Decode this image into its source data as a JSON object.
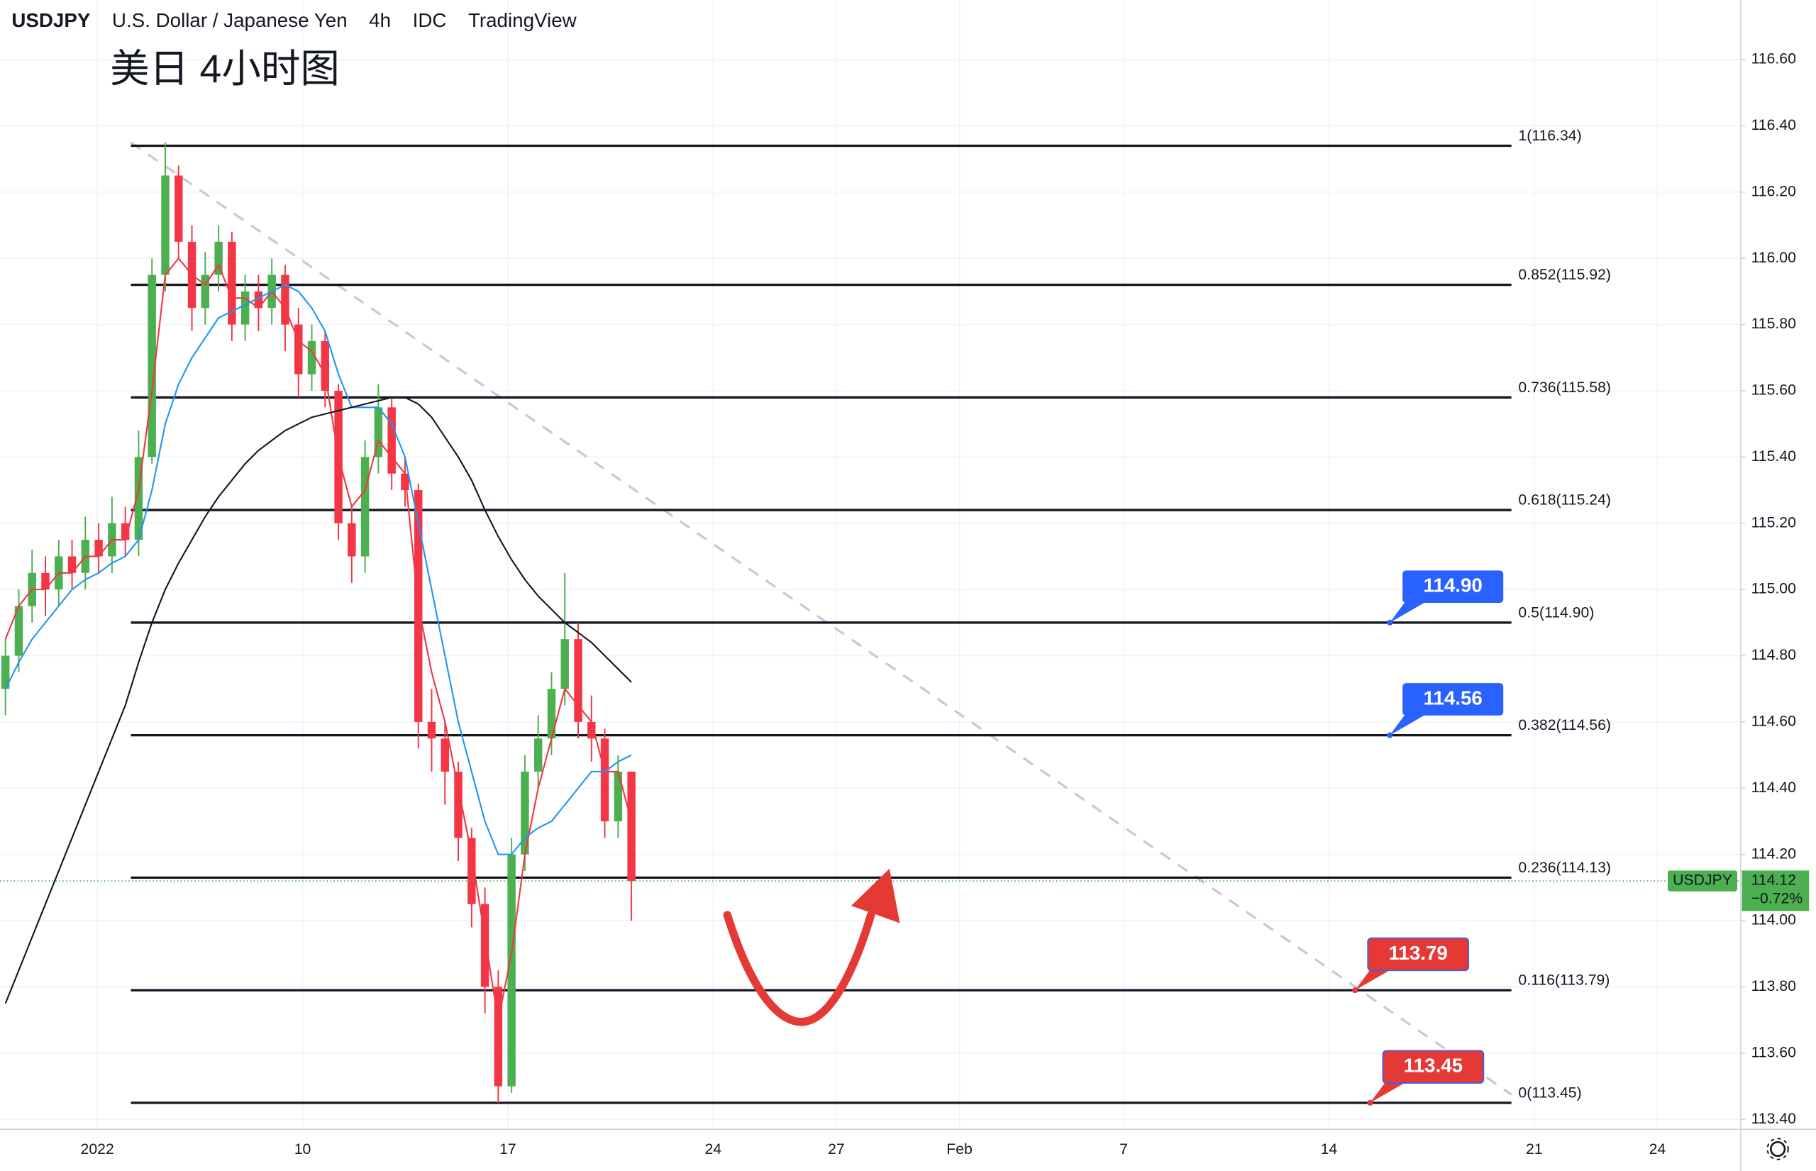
{
  "header": {
    "symbol": "USDJPY",
    "name": "U.S. Dollar / Japanese Yen",
    "interval": "4h",
    "source": "IDC",
    "platform": "TradingView"
  },
  "chart_data": {
    "type": "candlestick",
    "annotation": "美日 4小时图",
    "up_color": "#4caf50",
    "down_color": "#f23645",
    "open": [
      114.7,
      114.8,
      114.95,
      115.05,
      115.0,
      115.1,
      115.05,
      115.15,
      115.1,
      115.2,
      115.15,
      115.4,
      115.95,
      116.25,
      116.05,
      115.85,
      115.95,
      116.05,
      115.8,
      115.9,
      115.85,
      115.95,
      115.8,
      115.65,
      115.75,
      115.6,
      115.2,
      115.1,
      115.4,
      115.55,
      115.35,
      115.3,
      114.6,
      114.55,
      114.45,
      114.25,
      114.05,
      113.8,
      113.5,
      114.2,
      114.45,
      114.55,
      114.7,
      114.85,
      114.6,
      114.55,
      114.3,
      114.45
    ],
    "high": [
      114.85,
      115.0,
      115.12,
      115.1,
      115.15,
      115.15,
      115.22,
      115.2,
      115.28,
      115.25,
      115.48,
      116.0,
      116.35,
      116.28,
      116.1,
      116.02,
      116.1,
      116.08,
      115.95,
      115.95,
      116.0,
      115.98,
      115.85,
      115.8,
      115.78,
      115.62,
      115.25,
      115.45,
      115.62,
      115.58,
      115.4,
      115.32,
      114.7,
      114.6,
      114.48,
      114.28,
      114.1,
      113.85,
      114.25,
      114.5,
      114.62,
      114.75,
      115.05,
      114.9,
      114.68,
      114.58,
      114.5,
      114.45
    ],
    "low": [
      114.62,
      114.75,
      114.9,
      114.92,
      114.95,
      115.0,
      115.0,
      115.05,
      115.05,
      115.1,
      115.1,
      115.38,
      115.9,
      116.0,
      115.78,
      115.8,
      115.9,
      115.75,
      115.75,
      115.78,
      115.8,
      115.72,
      115.58,
      115.6,
      115.55,
      115.15,
      115.02,
      115.05,
      115.35,
      115.3,
      115.25,
      114.52,
      114.45,
      114.35,
      114.18,
      113.98,
      113.72,
      113.45,
      113.48,
      114.15,
      114.4,
      114.5,
      114.65,
      114.55,
      114.48,
      114.25,
      114.25,
      114.0
    ],
    "close": [
      114.8,
      114.95,
      115.05,
      115.0,
      115.1,
      115.05,
      115.15,
      115.1,
      115.2,
      115.15,
      115.4,
      115.95,
      116.25,
      116.05,
      115.85,
      115.95,
      116.05,
      115.8,
      115.9,
      115.85,
      115.95,
      115.8,
      115.65,
      115.75,
      115.6,
      115.2,
      115.1,
      115.4,
      115.55,
      115.35,
      115.3,
      114.6,
      114.55,
      114.45,
      114.25,
      114.05,
      113.8,
      113.5,
      114.2,
      114.45,
      114.55,
      114.7,
      114.85,
      114.6,
      114.55,
      114.3,
      114.45,
      114.12
    ],
    "series": [
      {
        "color": "#f23645",
        "values": [
          114.85,
          114.95,
          115.0,
          115.0,
          115.05,
          115.05,
          115.1,
          115.1,
          115.15,
          115.15,
          115.3,
          115.6,
          115.95,
          116.0,
          115.95,
          115.92,
          115.98,
          115.88,
          115.88,
          115.85,
          115.9,
          115.85,
          115.75,
          115.72,
          115.65,
          115.4,
          115.25,
          115.3,
          115.45,
          115.4,
          115.35,
          114.95,
          114.75,
          114.6,
          114.4,
          114.2,
          113.95,
          113.7,
          113.9,
          114.2,
          114.4,
          114.55,
          114.7,
          114.65,
          114.6,
          114.45,
          114.45,
          114.3
        ]
      },
      {
        "color": "#2196f3",
        "values": [
          114.7,
          114.78,
          114.85,
          114.9,
          114.95,
          115.0,
          115.03,
          115.05,
          115.08,
          115.1,
          115.15,
          115.3,
          115.5,
          115.62,
          115.7,
          115.76,
          115.82,
          115.84,
          115.86,
          115.88,
          115.9,
          115.92,
          115.9,
          115.85,
          115.78,
          115.65,
          115.55,
          115.55,
          115.55,
          115.5,
          115.4,
          115.2,
          115.0,
          114.8,
          114.6,
          114.45,
          114.3,
          114.2,
          114.2,
          114.25,
          114.28,
          114.3,
          114.35,
          114.4,
          114.45,
          114.45,
          114.48,
          114.5
        ]
      },
      {
        "color": "#131722",
        "values": [
          113.75,
          113.85,
          113.95,
          114.05,
          114.15,
          114.25,
          114.35,
          114.45,
          114.55,
          114.65,
          114.78,
          114.9,
          115.0,
          115.08,
          115.15,
          115.22,
          115.28,
          115.33,
          115.38,
          115.42,
          115.45,
          115.48,
          115.5,
          115.52,
          115.53,
          115.54,
          115.55,
          115.56,
          115.57,
          115.58,
          115.58,
          115.56,
          115.52,
          115.46,
          115.4,
          115.33,
          115.24,
          115.16,
          115.09,
          115.03,
          114.98,
          114.94,
          114.9,
          114.87,
          114.84,
          114.8,
          114.76,
          114.72
        ]
      }
    ],
    "ylim": [
      113.37,
      116.78
    ],
    "yticks": [
      {
        "value": 116.6,
        "label": "116.60"
      },
      {
        "value": 116.4,
        "label": "116.40"
      },
      {
        "value": 116.2,
        "label": "116.20"
      },
      {
        "value": 116,
        "label": "116.00"
      },
      {
        "value": 115.8,
        "label": "115.80"
      },
      {
        "value": 115.6,
        "label": "115.60"
      },
      {
        "value": 115.4,
        "label": "115.40"
      },
      {
        "value": 115.2,
        "label": "115.20"
      },
      {
        "value": 115,
        "label": "115.00"
      },
      {
        "value": 114.8,
        "label": "114.80"
      },
      {
        "value": 114.6,
        "label": "114.60"
      },
      {
        "value": 114.4,
        "label": "114.40"
      },
      {
        "value": 114.2,
        "label": "114.20"
      },
      {
        "value": 114,
        "label": "114.00"
      },
      {
        "value": 113.8,
        "label": "113.80"
      },
      {
        "value": 113.6,
        "label": "113.60"
      },
      {
        "value": 113.4,
        "label": "113.40"
      }
    ],
    "xlim": [
      -2.37,
      40.03
    ],
    "xticks": [
      {
        "value": 0,
        "label": "2022"
      },
      {
        "value": 5,
        "label": "10"
      },
      {
        "value": 10,
        "label": "17"
      },
      {
        "value": 15,
        "label": "24"
      },
      {
        "value": 18,
        "label": "27"
      },
      {
        "value": 21,
        "label": "Feb"
      },
      {
        "value": 25,
        "label": "7"
      },
      {
        "value": 30,
        "label": "14"
      },
      {
        "value": 35,
        "label": "21"
      },
      {
        "value": 38,
        "label": "24"
      }
    ],
    "grid": true,
    "fib_levels": [
      {
        "value": 116.34,
        "label": "1(116.34)"
      },
      {
        "value": 115.92,
        "label": "0.852(115.92)"
      },
      {
        "value": 115.58,
        "label": "0.736(115.58)"
      },
      {
        "value": 115.24,
        "label": "0.618(115.24)"
      },
      {
        "value": 114.9,
        "label": "0.5(114.90)"
      },
      {
        "value": 114.56,
        "label": "0.382(114.56)"
      },
      {
        "value": 114.13,
        "label": "0.236(114.13)"
      },
      {
        "value": 113.79,
        "label": "0.116(113.79)"
      },
      {
        "value": 113.45,
        "label": "0(113.45)"
      }
    ],
    "price_tags": [
      {
        "value": 114.9,
        "label": "114.90",
        "color": "#2962ff"
      },
      {
        "value": 114.56,
        "label": "114.56",
        "color": "#2962ff"
      },
      {
        "value": 113.79,
        "label": "113.79",
        "color": "#e53935"
      },
      {
        "value": 113.45,
        "label": "113.45",
        "color": "#e53935"
      }
    ],
    "last_price": {
      "symbol": "USDJPY",
      "value": 114.12,
      "change": {
        "value": -0.72,
        "label": "−0.72%"
      },
      "color": "#4caf50"
    }
  }
}
